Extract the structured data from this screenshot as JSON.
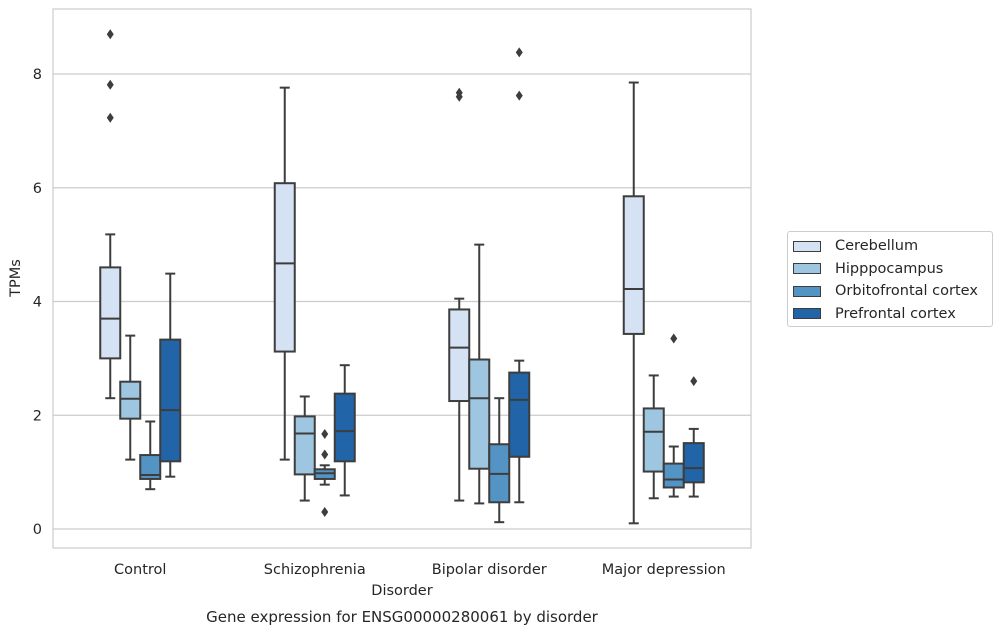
{
  "chart_data": {
    "type": "box",
    "caption": "Gene expression for ENSG00000280061 by disorder",
    "xlabel": "Disorder",
    "ylabel": "TPMs",
    "ylim": [
      -0.3,
      9.2
    ],
    "yticks": [
      "0",
      "2",
      "4",
      "6",
      "8"
    ],
    "ytick_values": [
      0,
      2,
      4,
      6,
      8
    ],
    "grid": "horizontal",
    "legend_position": "right",
    "categories": [
      "Control",
      "Schizophrenia",
      "Bipolar disorder",
      "Major depression"
    ],
    "series": [
      {
        "name": "Cerebellum",
        "color": "#d4e2f3",
        "boxes": [
          {
            "whisker_low": 2.3,
            "q1": 3.0,
            "median": 3.7,
            "q3": 4.6,
            "whisker_high": 5.18,
            "outliers": [
              7.23,
              7.81,
              8.7
            ]
          },
          {
            "whisker_low": 1.22,
            "q1": 3.12,
            "median": 4.67,
            "q3": 6.08,
            "whisker_high": 7.76,
            "outliers": []
          },
          {
            "whisker_low": 0.5,
            "q1": 2.25,
            "median": 3.19,
            "q3": 3.86,
            "whisker_high": 4.05,
            "outliers": [
              7.6,
              7.67
            ]
          },
          {
            "whisker_low": 0.1,
            "q1": 3.43,
            "median": 4.22,
            "q3": 5.85,
            "whisker_high": 7.85,
            "outliers": []
          }
        ]
      },
      {
        "name": "Hipppocampus",
        "color": "#9ec6e0",
        "boxes": [
          {
            "whisker_low": 1.22,
            "q1": 1.94,
            "median": 2.29,
            "q3": 2.59,
            "whisker_high": 3.4,
            "outliers": []
          },
          {
            "whisker_low": 0.5,
            "q1": 0.96,
            "median": 1.68,
            "q3": 1.98,
            "whisker_high": 2.33,
            "outliers": []
          },
          {
            "whisker_low": 0.45,
            "q1": 1.06,
            "median": 2.3,
            "q3": 2.98,
            "whisker_high": 5.0,
            "outliers": []
          },
          {
            "whisker_low": 0.54,
            "q1": 1.01,
            "median": 1.71,
            "q3": 2.12,
            "whisker_high": 2.7,
            "outliers": []
          }
        ]
      },
      {
        "name": "Orbitofrontal cortex",
        "color": "#5494c5",
        "boxes": [
          {
            "whisker_low": 0.7,
            "q1": 0.88,
            "median": 0.95,
            "q3": 1.3,
            "whisker_high": 1.89,
            "outliers": []
          },
          {
            "whisker_low": 0.78,
            "q1": 0.88,
            "median": 0.98,
            "q3": 1.05,
            "whisker_high": 1.12,
            "outliers": [
              0.3,
              1.31,
              1.67
            ]
          },
          {
            "whisker_low": 0.12,
            "q1": 0.47,
            "median": 0.97,
            "q3": 1.49,
            "whisker_high": 2.3,
            "outliers": []
          },
          {
            "whisker_low": 0.57,
            "q1": 0.73,
            "median": 0.87,
            "q3": 1.15,
            "whisker_high": 1.45,
            "outliers": [
              3.35
            ]
          }
        ]
      },
      {
        "name": "Prefrontal cortex",
        "color": "#2164a8",
        "boxes": [
          {
            "whisker_low": 0.92,
            "q1": 1.19,
            "median": 2.09,
            "q3": 3.33,
            "whisker_high": 4.49,
            "outliers": []
          },
          {
            "whisker_low": 0.59,
            "q1": 1.19,
            "median": 1.72,
            "q3": 2.38,
            "whisker_high": 2.88,
            "outliers": []
          },
          {
            "whisker_low": 0.47,
            "q1": 1.27,
            "median": 2.27,
            "q3": 2.75,
            "whisker_high": 2.96,
            "outliers": [
              7.62,
              8.38
            ]
          },
          {
            "whisker_low": 0.57,
            "q1": 0.82,
            "median": 1.07,
            "q3": 1.51,
            "whisker_high": 1.76,
            "outliers": [
              2.6
            ]
          }
        ]
      }
    ]
  }
}
